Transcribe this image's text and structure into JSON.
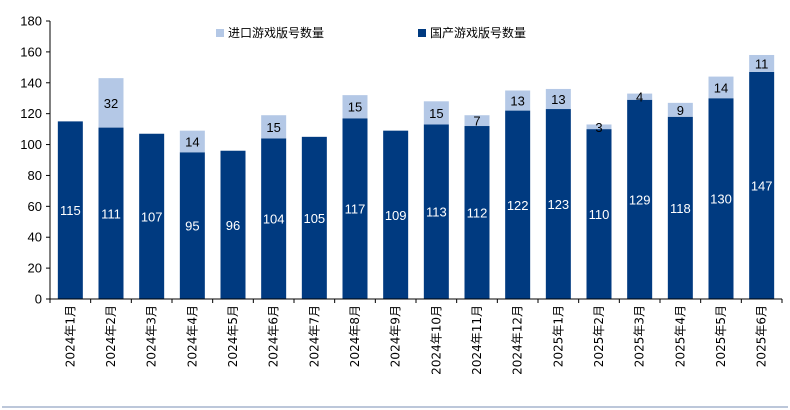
{
  "chart_data": {
    "type": "bar",
    "stacked": true,
    "categories": [
      "2024年1月",
      "2024年2月",
      "2024年3月",
      "2024年4月",
      "2024年5月",
      "2024年6月",
      "2024年7月",
      "2024年8月",
      "2024年9月",
      "2024年10月",
      "2024年11月",
      "2024年12月",
      "2025年1月",
      "2025年2月",
      "2025年3月",
      "2025年4月",
      "2025年5月",
      "2025年6月"
    ],
    "series": [
      {
        "name": "国产游戏版号数量",
        "color": "#003a80",
        "values": [
          115,
          111,
          107,
          95,
          96,
          104,
          105,
          117,
          109,
          113,
          112,
          122,
          123,
          110,
          129,
          118,
          130,
          147
        ]
      },
      {
        "name": "进口游戏版号数量",
        "color": "#b4c8e6",
        "values": [
          0,
          32,
          0,
          14,
          0,
          15,
          0,
          15,
          0,
          15,
          7,
          13,
          13,
          3,
          4,
          9,
          14,
          11
        ]
      }
    ],
    "ylim": [
      0,
      180
    ],
    "yticks": [
      0,
      20,
      40,
      60,
      80,
      100,
      120,
      140,
      160,
      180
    ],
    "grid": false,
    "legend_position": "top",
    "legend_order": [
      "进口游戏版号数量",
      "国产游戏版号数量"
    ]
  }
}
